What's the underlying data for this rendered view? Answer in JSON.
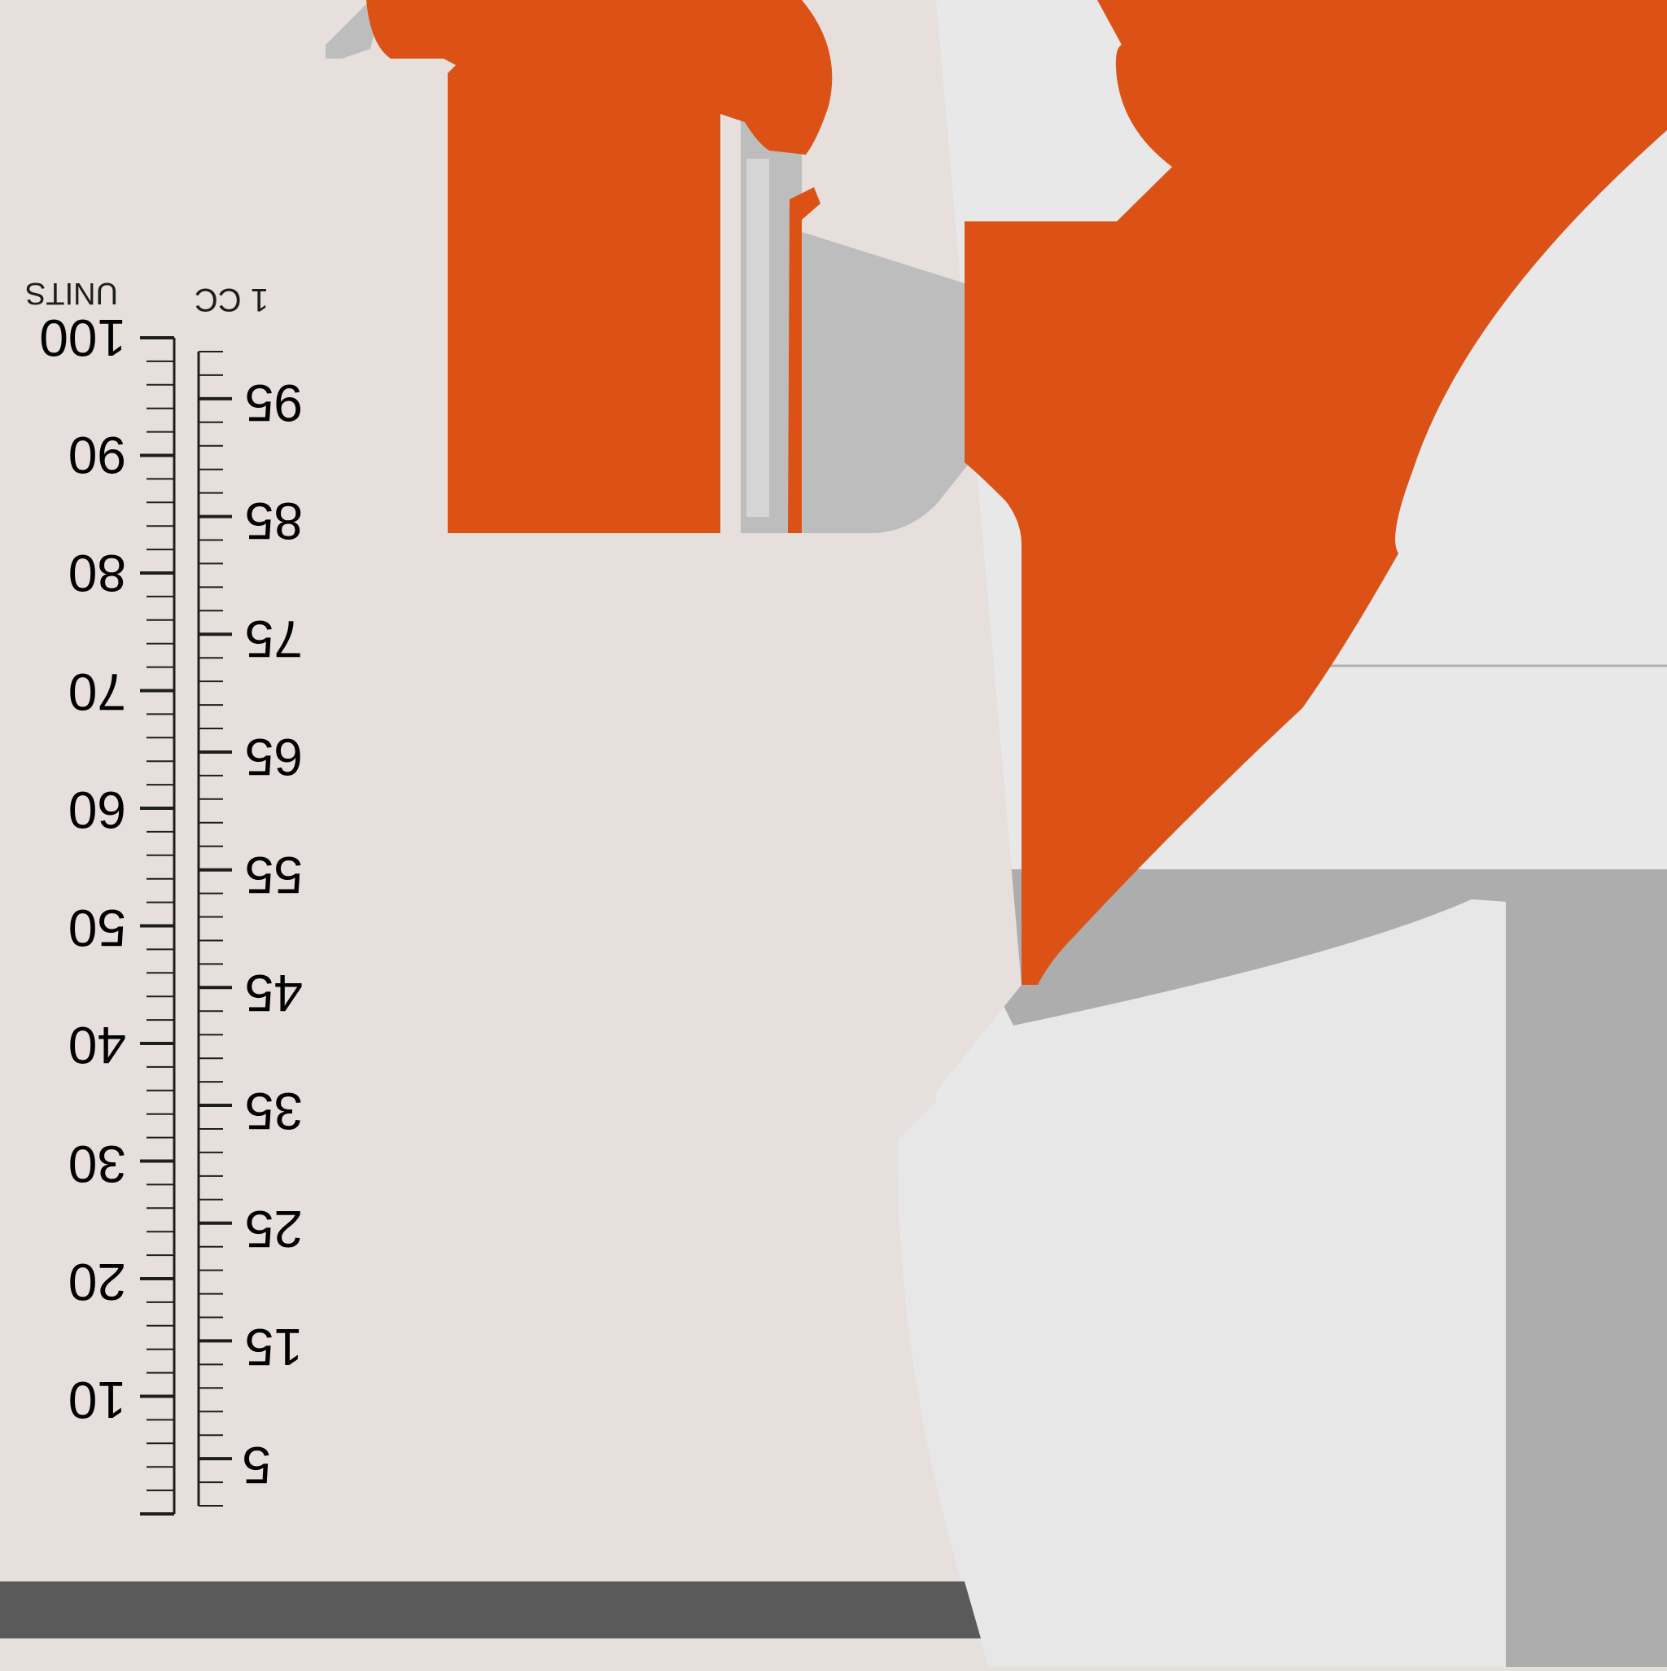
{
  "scale": {
    "units_label": "UNITS",
    "cc_label": "1 CC",
    "units_ticks": [
      "100",
      "90",
      "80",
      "70",
      "60",
      "50",
      "40",
      "30",
      "20",
      "10"
    ],
    "cc_ticks": [
      "95",
      "85",
      "75",
      "65",
      "55",
      "45",
      "35",
      "25",
      "15",
      "5"
    ]
  },
  "colors": {
    "background": "#e6dfdc",
    "cap_orange": "#dc5216",
    "needle_gray": "#bdbdbd",
    "plunger_light": "#e7e7e7",
    "plunger_gray": "#adadad",
    "bottom_bar": "#5a5a5a",
    "ink": "#1e1e1e"
  }
}
